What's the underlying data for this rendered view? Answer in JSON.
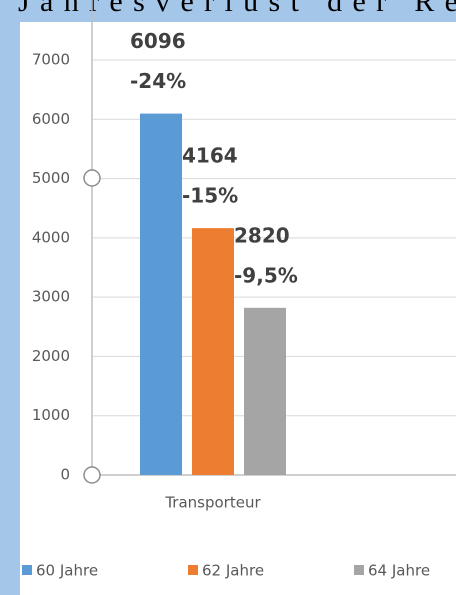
{
  "chart_data": {
    "type": "bar",
    "title": "Jahresverlust der Re",
    "categories": [
      "Transporteur"
    ],
    "series": [
      {
        "name": "60 Jahre",
        "color": "#5b9bd5",
        "values": [
          6096
        ],
        "annotations": [
          "-24%"
        ]
      },
      {
        "name": "62 Jahre",
        "color": "#ed7d31",
        "values": [
          4164
        ],
        "annotations": [
          "-15%"
        ]
      },
      {
        "name": "64 Jahre",
        "color": "#a5a5a5",
        "values": [
          2820
        ],
        "annotations": [
          "-9,5%"
        ]
      }
    ],
    "ylim": [
      0,
      7000
    ],
    "yticks": [
      0,
      1000,
      2000,
      3000,
      4000,
      5000,
      6000,
      7000
    ],
    "grid": true,
    "legend": "bottom"
  }
}
